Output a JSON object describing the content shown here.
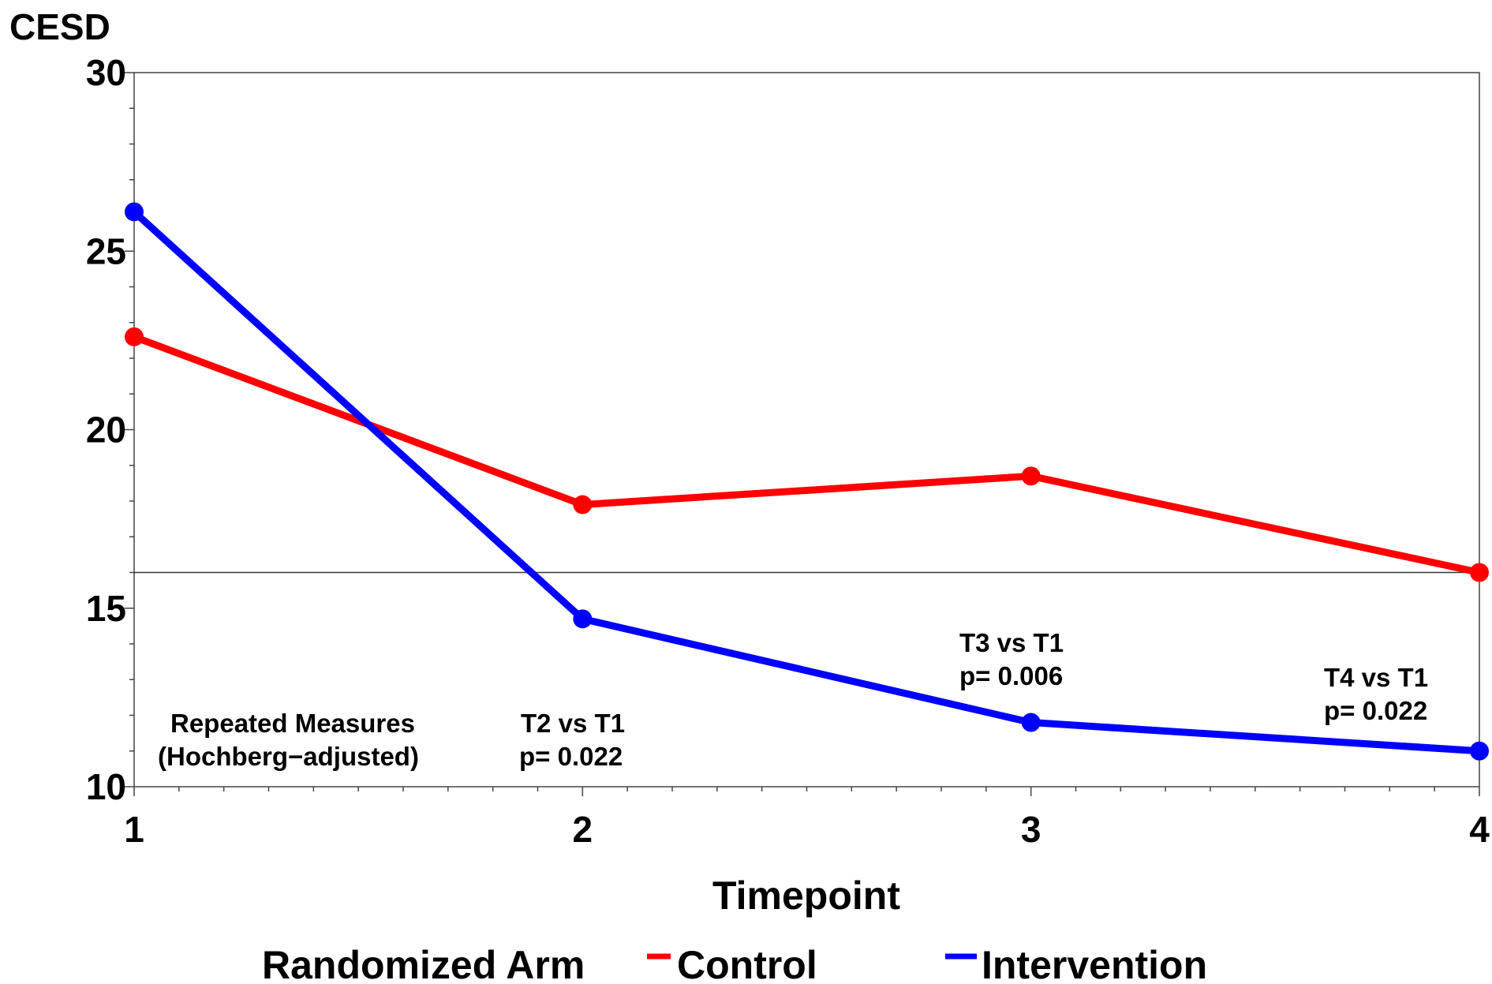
{
  "chart_data": {
    "type": "line",
    "ylabel": "CESD",
    "xlabel": "Timepoint",
    "x": [
      1,
      2,
      3,
      4
    ],
    "xlim": [
      1,
      4
    ],
    "ylim": [
      10,
      30
    ],
    "yticks": [
      10,
      15,
      20,
      25,
      30
    ],
    "xticks": [
      1,
      2,
      3,
      4
    ],
    "reference_line": 16,
    "series": [
      {
        "name": "Control",
        "color": "#ff0000",
        "values": [
          22.6,
          17.9,
          18.7,
          16.0
        ]
      },
      {
        "name": "Intervention",
        "color": "#0000ff",
        "values": [
          26.1,
          14.7,
          11.8,
          11.0
        ]
      }
    ],
    "annotations": [
      {
        "lines": [
          "Repeated Measures",
          "(Hochberg−adjusted)"
        ]
      },
      {
        "lines": [
          "T2 vs T1",
          "p= 0.022"
        ]
      },
      {
        "lines": [
          "T3 vs T1",
          "p= 0.006"
        ]
      },
      {
        "lines": [
          "T4 vs T1",
          "p= 0.022"
        ]
      }
    ],
    "legend": {
      "title": "Randomized Arm",
      "position": "bottom"
    },
    "grid": false
  }
}
